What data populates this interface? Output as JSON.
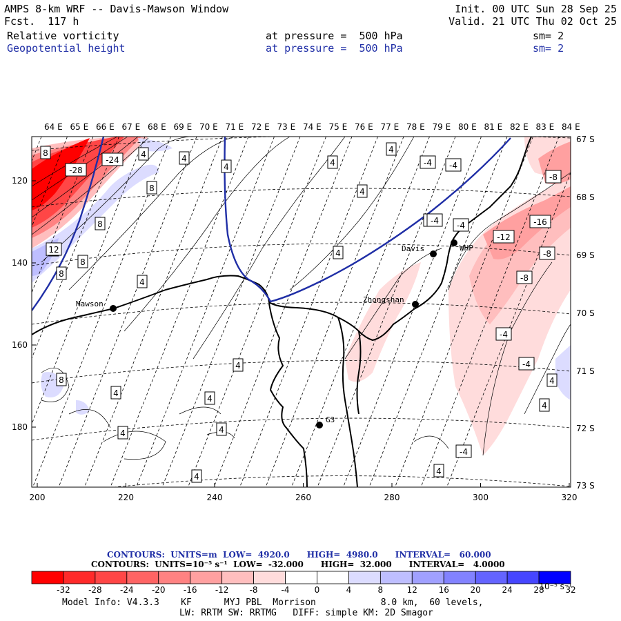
{
  "header": {
    "title": "AMPS 8-km WRF -- Davis-Mawson Window",
    "fcst": "Fcst.  117 h",
    "init": "Init. 00 UTC Sun 28 Sep 25",
    "valid": "Valid. 21 UTC Thu 02 Oct 25",
    "field1": {
      "name": "Relative vorticity",
      "level": "at pressure =  500 hPa",
      "sm": "sm= 2"
    },
    "field2": {
      "name": "Geopotential height",
      "level": "at pressure =  500 hPa",
      "sm": "sm= 2"
    }
  },
  "map": {
    "top_lon_labels": [
      "64 E",
      "65 E",
      "66 E",
      "67 E",
      "68 E",
      "69 E",
      "70 E",
      "71 E",
      "72 E",
      "73 E",
      "74 E",
      "75 E",
      "76 E",
      "77 E",
      "78 E",
      "79 E",
      "80 E",
      "81 E",
      "82 E",
      "83 E",
      "84 E"
    ],
    "right_lat_labels": [
      "67 S",
      "68 S",
      "69 S",
      "70 S",
      "71 S",
      "72 S",
      "73 S"
    ],
    "x_grid_ticks": [
      "200",
      "220",
      "240",
      "260",
      "280",
      "300",
      "320"
    ],
    "y_grid_ticks": [
      "120",
      "140",
      "160",
      "180"
    ],
    "stations": [
      {
        "name": "Mawson",
        "label_dir": "left"
      },
      {
        "name": "Davis",
        "label_dir": "left"
      },
      {
        "name": "WHP",
        "label_dir": "right"
      },
      {
        "name": "Zhongshan",
        "label_dir": "left"
      },
      {
        "name": "G3",
        "label_dir": "right"
      }
    ],
    "contour_labels": [
      "8",
      "-28",
      "-24",
      "4",
      "4",
      "4",
      "4",
      "-4",
      "-4",
      "8",
      "4",
      "4",
      "8",
      "-8",
      "8",
      "-4",
      "-4",
      "-16",
      "-12",
      "12",
      "8",
      "4",
      "-8",
      "8",
      "4",
      "-8",
      "4",
      "-4",
      "-4",
      "8",
      "4",
      "4",
      "4",
      "4",
      "4",
      "-4",
      "4",
      "4",
      "4",
      "-4",
      "-4",
      "4"
    ]
  },
  "colorbar": {
    "contours_line1": "CONTOURS:  UNITS=m  LOW=  4920.0      HIGH=  4980.0      INTERVAL=   60.000",
    "contours_line2": "CONTOURS:  UNITS=10⁻⁵ s⁻¹  LOW=  -32.000      HIGH=  32.000      INTERVAL=   4.0000",
    "tick_labels": [
      "-32",
      "-28",
      "-24",
      "-20",
      "-16",
      "-12",
      "-8",
      "-4",
      "0",
      "4",
      "8",
      "12",
      "16",
      "20",
      "24",
      "28",
      "32"
    ],
    "unit_label": "10⁻⁵ s⁻¹",
    "colors": [
      "#ff0000",
      "#ff2a2a",
      "#ff4646",
      "#ff6464",
      "#ff8282",
      "#ffa0a0",
      "#ffbebe",
      "#ffdcdc",
      "#ffffff",
      "#ffffff",
      "#dcdcff",
      "#bebeff",
      "#a0a0ff",
      "#8282ff",
      "#6464ff",
      "#4646ff",
      "#0000ff"
    ]
  },
  "footer": {
    "line1": "Model Info: V4.3.3    KF      MYJ PBL  Morrison            8.0 km,  60 levels,",
    "line2": "LW: RRTM SW: RRTMG   DIFF: simple KM: 2D Smagor"
  }
}
